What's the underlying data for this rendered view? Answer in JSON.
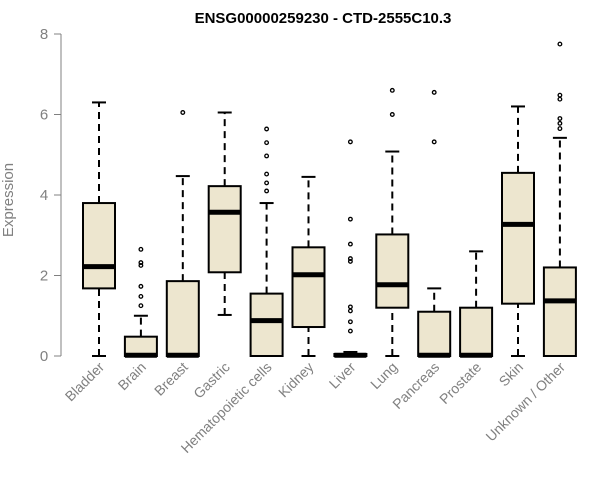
{
  "chart_data": {
    "type": "boxplot",
    "title": "ENSG00000259230 - CTD-2555C10.3",
    "ylabel": "Expression",
    "xlabel": "",
    "ylim": [
      0,
      8
    ],
    "yticks": [
      "0",
      "2",
      "4",
      "6",
      "8"
    ],
    "categories": [
      "Bladder",
      "Brain",
      "Breast",
      "Gastric",
      "Hematopoietic cells",
      "Kidney",
      "Liver",
      "Lung",
      "Pancreas",
      "Prostate",
      "Skin",
      "Unknown / Other"
    ],
    "boxes": [
      {
        "category": "Bladder",
        "min": 0.0,
        "q1": 1.68,
        "median": 2.22,
        "q3": 3.8,
        "max": 6.3,
        "outliers": []
      },
      {
        "category": "Brain",
        "min": 0.0,
        "q1": 0.0,
        "median": 0.02,
        "q3": 0.48,
        "max": 1.0,
        "outliers": [
          1.25,
          1.48,
          1.73,
          2.25,
          2.32,
          2.65
        ]
      },
      {
        "category": "Breast",
        "min": 0.0,
        "q1": 0.0,
        "median": 0.02,
        "q3": 1.86,
        "max": 4.47,
        "outliers": [
          6.05
        ]
      },
      {
        "category": "Gastric",
        "min": 1.02,
        "q1": 2.08,
        "median": 3.57,
        "q3": 4.22,
        "max": 6.05,
        "outliers": []
      },
      {
        "category": "Hematopoietic cells",
        "min": 0.0,
        "q1": 0.0,
        "median": 0.88,
        "q3": 1.55,
        "max": 3.8,
        "outliers": [
          4.1,
          4.3,
          4.52,
          4.97,
          5.3,
          5.64
        ]
      },
      {
        "category": "Kidney",
        "min": 0.0,
        "q1": 0.72,
        "median": 2.02,
        "q3": 2.7,
        "max": 4.45,
        "outliers": []
      },
      {
        "category": "Liver",
        "min": 0.0,
        "q1": 0.0,
        "median": 0.02,
        "q3": 0.05,
        "max": 0.1,
        "outliers": [
          0.62,
          0.85,
          1.12,
          1.22,
          2.35,
          2.42,
          2.78,
          3.4,
          5.32
        ]
      },
      {
        "category": "Lung",
        "min": 0.0,
        "q1": 1.2,
        "median": 1.77,
        "q3": 3.02,
        "max": 5.08,
        "outliers": [
          6.0,
          6.6
        ]
      },
      {
        "category": "Pancreas",
        "min": 0.0,
        "q1": 0.0,
        "median": 0.02,
        "q3": 1.1,
        "max": 1.68,
        "outliers": [
          5.32,
          6.55
        ]
      },
      {
        "category": "Prostate",
        "min": 0.0,
        "q1": 0.0,
        "median": 0.02,
        "q3": 1.2,
        "max": 2.6,
        "outliers": []
      },
      {
        "category": "Skin",
        "min": 0.0,
        "q1": 1.3,
        "median": 3.27,
        "q3": 4.55,
        "max": 6.2,
        "outliers": []
      },
      {
        "category": "Unknown / Other",
        "min": 0.0,
        "q1": 0.0,
        "median": 1.37,
        "q3": 2.2,
        "max": 5.42,
        "outliers": [
          5.65,
          5.78,
          5.9,
          6.38,
          6.48,
          7.75
        ]
      }
    ],
    "grid": false,
    "box_fill": "#ede6cf",
    "line_color": "#000000",
    "axis_color": "#808080"
  }
}
